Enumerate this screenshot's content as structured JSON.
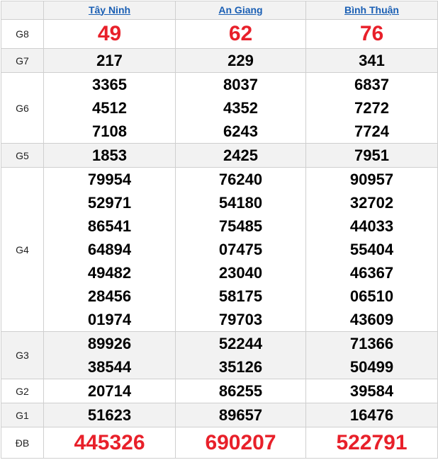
{
  "header": {
    "provinces": [
      "Tây Ninh",
      "An Giang",
      "Bình Thuận"
    ]
  },
  "colors": {
    "prize_highlight": "#e8202a",
    "link": "#1a5fb4",
    "alt_row": "#f2f2f2"
  },
  "rows": [
    {
      "label": "G8",
      "big": true,
      "values": [
        [
          "49"
        ],
        [
          "62"
        ],
        [
          "76"
        ]
      ]
    },
    {
      "label": "G7",
      "values": [
        [
          "217"
        ],
        [
          "229"
        ],
        [
          "341"
        ]
      ]
    },
    {
      "label": "G6",
      "values": [
        [
          "3365",
          "4512",
          "7108"
        ],
        [
          "8037",
          "4352",
          "6243"
        ],
        [
          "6837",
          "7272",
          "7724"
        ]
      ]
    },
    {
      "label": "G5",
      "values": [
        [
          "1853"
        ],
        [
          "2425"
        ],
        [
          "7951"
        ]
      ]
    },
    {
      "label": "G4",
      "values": [
        [
          "79954",
          "52971",
          "86541",
          "64894",
          "49482",
          "28456",
          "01974"
        ],
        [
          "76240",
          "54180",
          "75485",
          "07475",
          "23040",
          "58175",
          "79703"
        ],
        [
          "90957",
          "32702",
          "44033",
          "55404",
          "46367",
          "06510",
          "43609"
        ]
      ]
    },
    {
      "label": "G3",
      "values": [
        [
          "89926",
          "38544"
        ],
        [
          "52244",
          "35126"
        ],
        [
          "71366",
          "50499"
        ]
      ]
    },
    {
      "label": "G2",
      "values": [
        [
          "20714"
        ],
        [
          "86255"
        ],
        [
          "39584"
        ]
      ]
    },
    {
      "label": "G1",
      "values": [
        [
          "51623"
        ],
        [
          "89657"
        ],
        [
          "16476"
        ]
      ]
    },
    {
      "label": "ĐB",
      "big": true,
      "values": [
        [
          "445326"
        ],
        [
          "690207"
        ],
        [
          "522791"
        ]
      ]
    }
  ]
}
